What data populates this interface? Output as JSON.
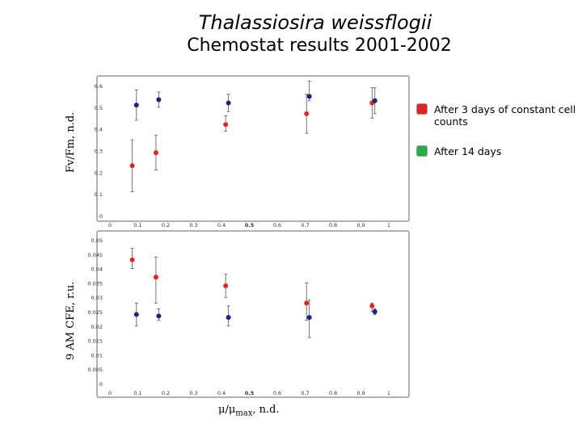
{
  "title_line1": "Thalassiosira weissflogii",
  "title_line2": "Chemostat results 2001-2002",
  "colors": {
    "series_3days": "#e32424",
    "series_14days": "#1a237e",
    "legend_red": "#e32424",
    "legend_green": "#22b04a",
    "error_bar": "#555555",
    "frame": "#999999"
  },
  "legend": {
    "item1": "After 3 days of constant cell counts",
    "item2": "After 14 days"
  },
  "x_axis": {
    "label_main": "μ/μ",
    "label_sub": "max",
    "label_tail": ", n.d."
  },
  "chart_data": [
    {
      "type": "scatter",
      "id": "fvfm",
      "ylabel": "Fv/Fm, n.d.",
      "xlim": [
        0,
        1
      ],
      "ylim": [
        0,
        0.6
      ],
      "xticks": [
        "0",
        "0.1",
        "0.2",
        "0.3",
        "0.4",
        "0.5",
        "0.6",
        "0.7",
        "0.8",
        "0.9",
        "1"
      ],
      "yticks": [
        "0",
        "0.1",
        "0.2",
        "0.3",
        "0.4",
        "0.5",
        "0.6"
      ],
      "series": [
        {
          "name": "After 3 days of constant cell counts",
          "color": "#e32424",
          "points": [
            {
              "x": 0.08,
              "y": 0.23,
              "lo": 0.11,
              "hi": 0.35
            },
            {
              "x": 0.165,
              "y": 0.29,
              "lo": 0.21,
              "hi": 0.37
            },
            {
              "x": 0.415,
              "y": 0.42,
              "lo": 0.39,
              "hi": 0.46
            },
            {
              "x": 0.705,
              "y": 0.47,
              "lo": 0.38,
              "hi": 0.56
            },
            {
              "x": 0.94,
              "y": 0.52,
              "lo": 0.45,
              "hi": 0.59
            }
          ]
        },
        {
          "name": "After 14 days",
          "color": "#1a237e",
          "points": [
            {
              "x": 0.095,
              "y": 0.51,
              "lo": 0.44,
              "hi": 0.58
            },
            {
              "x": 0.175,
              "y": 0.535,
              "lo": 0.5,
              "hi": 0.57
            },
            {
              "x": 0.425,
              "y": 0.52,
              "lo": 0.48,
              "hi": 0.56
            },
            {
              "x": 0.715,
              "y": 0.55,
              "lo": 0.53,
              "hi": 0.62
            },
            {
              "x": 0.95,
              "y": 0.53,
              "lo": 0.47,
              "hi": 0.59
            }
          ]
        }
      ]
    },
    {
      "type": "scatter",
      "id": "cfe",
      "ylabel": "9 AM CFE, r.u.",
      "xlim": [
        0,
        1
      ],
      "ylim": [
        0,
        0.05
      ],
      "xticks": [
        "0",
        "0.1",
        "0.2",
        "0.3",
        "0.4",
        "0.5",
        "0.6",
        "0.7",
        "0.8",
        "0.9",
        "1"
      ],
      "yticks": [
        "0",
        "0.005",
        "0.01",
        "0.015",
        "0.02",
        "0.025",
        "0.03",
        "0.035",
        "0.04",
        "0.045",
        "0.05"
      ],
      "series": [
        {
          "name": "After 3 days of constant cell counts",
          "color": "#e32424",
          "points": [
            {
              "x": 0.08,
              "y": 0.043,
              "lo": 0.04,
              "hi": 0.047
            },
            {
              "x": 0.165,
              "y": 0.037,
              "lo": 0.028,
              "hi": 0.044
            },
            {
              "x": 0.415,
              "y": 0.034,
              "lo": 0.03,
              "hi": 0.038
            },
            {
              "x": 0.705,
              "y": 0.028,
              "lo": 0.022,
              "hi": 0.035
            },
            {
              "x": 0.94,
              "y": 0.027,
              "lo": 0.025,
              "hi": 0.028
            }
          ]
        },
        {
          "name": "After 14 days",
          "color": "#1a237e",
          "points": [
            {
              "x": 0.095,
              "y": 0.024,
              "lo": 0.02,
              "hi": 0.028
            },
            {
              "x": 0.175,
              "y": 0.0235,
              "lo": 0.022,
              "hi": 0.026
            },
            {
              "x": 0.425,
              "y": 0.023,
              "lo": 0.02,
              "hi": 0.027
            },
            {
              "x": 0.715,
              "y": 0.023,
              "lo": 0.016,
              "hi": 0.029
            },
            {
              "x": 0.95,
              "y": 0.025,
              "lo": 0.024,
              "hi": 0.026
            }
          ]
        }
      ]
    }
  ]
}
